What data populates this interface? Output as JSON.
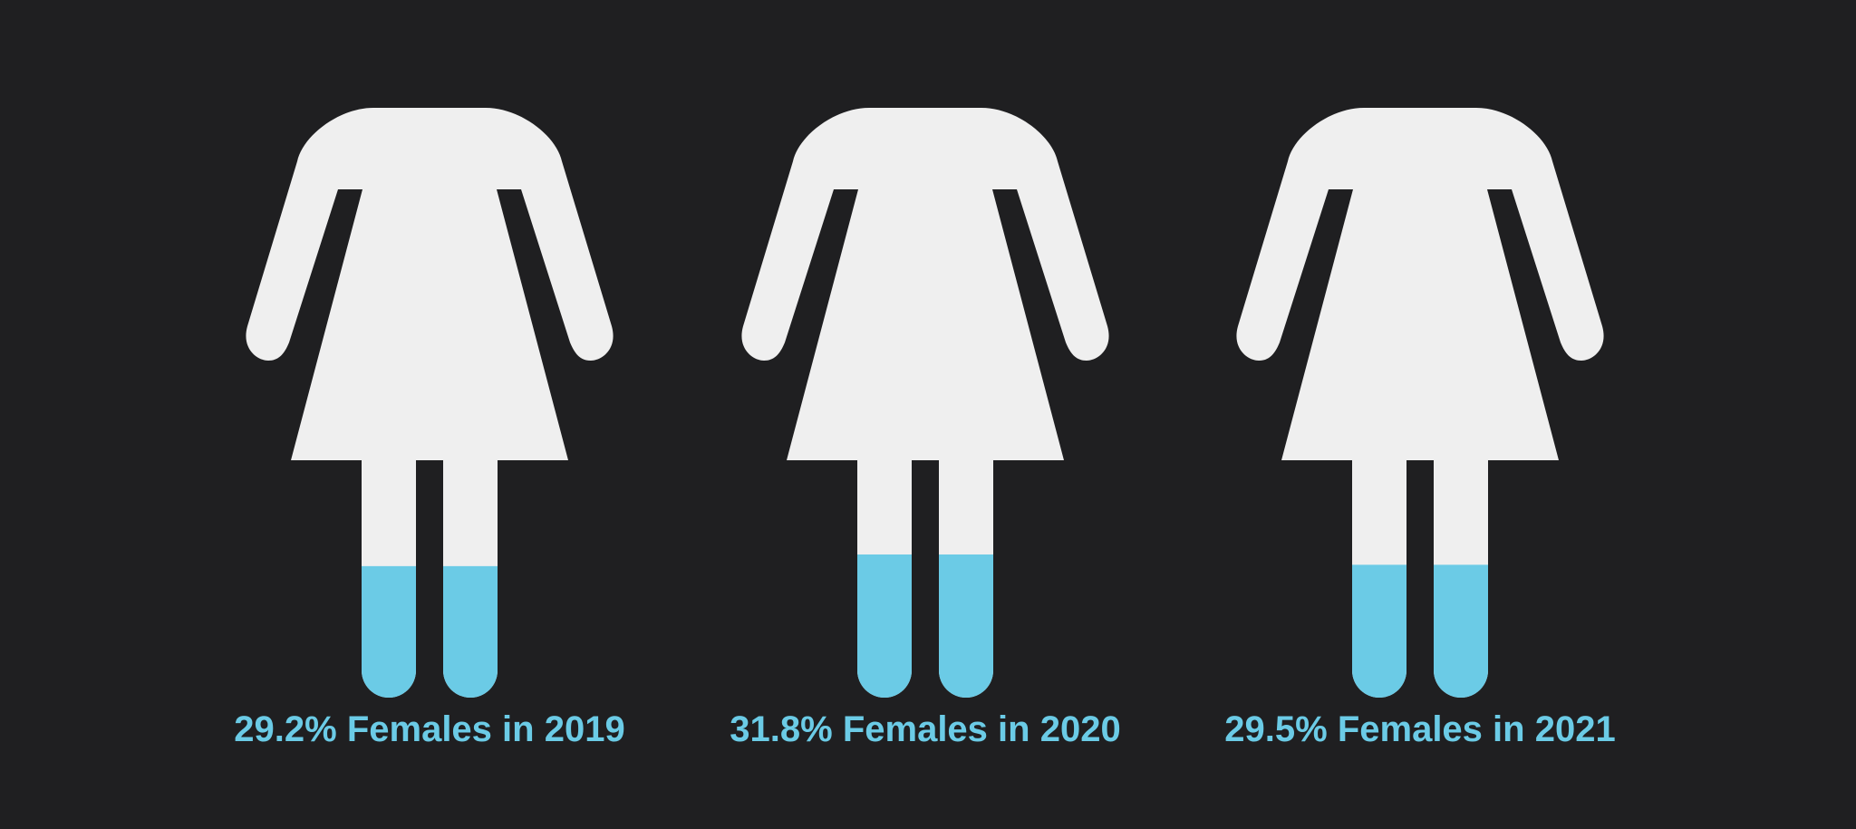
{
  "colors": {
    "background": "#1f1f21",
    "figure": "#efefef",
    "fill": "#6bcbe6",
    "label": "#6bcbe6"
  },
  "chart_data": {
    "type": "pictograph",
    "icon": "female-figure-icon",
    "fill_level_note_free": true,
    "items": [
      {
        "year": "2019",
        "value": 29.2,
        "label": "29.2% Females in 2019"
      },
      {
        "year": "2020",
        "value": 31.8,
        "label": "31.8% Females in 2020"
      },
      {
        "year": "2021",
        "value": 29.5,
        "label": "29.5% Females in 2021"
      }
    ]
  }
}
